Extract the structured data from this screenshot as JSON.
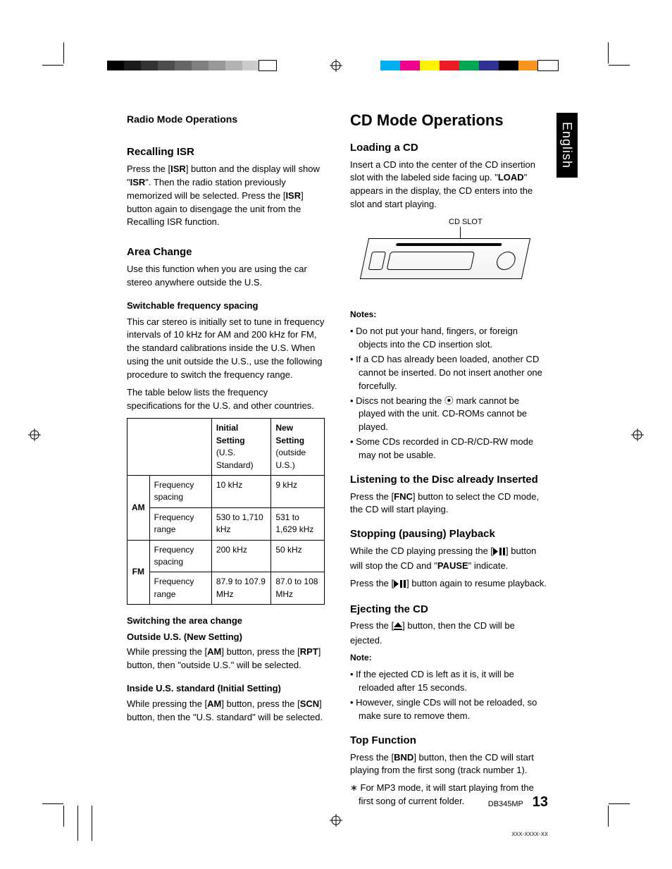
{
  "language_tab": "English",
  "page_footer": {
    "model": "DB345MP",
    "page_number": "13",
    "doc_code": "xxx-xxxx-xx"
  },
  "print_marks": {
    "mono_bar": [
      "#000000",
      "#1a1a1a",
      "#333333",
      "#4d4d4d",
      "#666666",
      "#808080",
      "#999999",
      "#b3b3b3",
      "#cccccc",
      "#ffffff"
    ],
    "color_bar": [
      "#00aeef",
      "#ec008c",
      "#fff200",
      "#ed1c24",
      "#00a651",
      "#2e3192",
      "#000000",
      "#f7941d",
      "#ffffff"
    ]
  },
  "left": {
    "minor_heading": "Radio Mode Operations",
    "recalling_isr": {
      "heading": "Recalling ISR",
      "body_parts": [
        "Press the [",
        "ISR",
        "] button and the display will show \"",
        "ISR",
        "\". Then the radio station previously memorized will be selected. Press the [",
        "ISR",
        "] button again to disengage the unit from the Recalling ISR function."
      ]
    },
    "area_change": {
      "heading": "Area Change",
      "intro": "Use this function when you are using the car stereo anywhere outside the U.S.",
      "switchable_heading": "Switchable frequency spacing",
      "switchable_body1": "This car stereo is initially set to tune in frequency intervals of 10 kHz for AM and 200 kHz for FM, the standard calibrations inside the U.S. When using the unit outside the U.S., use the following procedure to switch the frequency range.",
      "switchable_body2": "The table below lists the frequency specifications for the U.S. and other countries."
    },
    "freq_table": {
      "col_headers": [
        {
          "line1": "Initial Setting",
          "line2": "(U.S. Standard)"
        },
        {
          "line1": "New Setting",
          "line2": "(outside U.S.)"
        }
      ],
      "bands": [
        {
          "band": "AM",
          "rows": [
            {
              "label": "Frequency spacing",
              "initial": "10 kHz",
              "new": "9 kHz"
            },
            {
              "label": "Frequency range",
              "initial": "530 to 1,710 kHz",
              "new": "531 to 1,629 kHz"
            }
          ]
        },
        {
          "band": "FM",
          "rows": [
            {
              "label": "Frequency spacing",
              "initial": "200 kHz",
              "new": "50 kHz"
            },
            {
              "label": "Frequency range",
              "initial": "87.9 to 107.9 MHz",
              "new": "87.0 to 108 MHz"
            }
          ]
        }
      ]
    },
    "switching": {
      "heading": "Switching the area change",
      "outside_heading": "Outside U.S. (New Setting)",
      "outside_body_parts": [
        "While pressing the [",
        "AM",
        "] button, press the [",
        "RPT",
        "] button, then \"outside U.S.\" will be selected."
      ],
      "inside_heading": "Inside U.S. standard (Initial Setting)",
      "inside_body_parts": [
        "While pressing the [",
        "AM",
        "] button, press the [",
        "SCN",
        "] button, then the \"U.S. standard\" will be selected."
      ]
    }
  },
  "right": {
    "major_heading": "CD Mode Operations",
    "loading": {
      "heading": "Loading a CD",
      "body_parts": [
        "Insert a CD into the center of the CD insertion slot with the labeled side facing up. \"",
        "LOAD",
        "\" appears in the display, the CD enters into the slot and start playing."
      ],
      "diagram_label": "CD SLOT"
    },
    "notes": {
      "label": "Notes:",
      "items": [
        "Do not put your hand, fingers, or foreign objects into the CD insertion slot.",
        "If a CD has already been loaded, another CD cannot be inserted. Do not insert another one forcefully.",
        "Discs not bearing the ⦿ mark cannot be played with the unit. CD-ROMs cannot be played.",
        "Some CDs recorded in CD-R/CD-RW mode may not be usable."
      ]
    },
    "listening": {
      "heading": "Listening to the Disc already Inserted",
      "body_parts": [
        "Press the [",
        "FNC",
        "] button to select the CD mode, the CD will start playing."
      ]
    },
    "stopping": {
      "heading": "Stopping (pausing) Playback",
      "body1_pre": "While the CD playing pressing the [",
      "body1_post": "] button will stop the CD and \"",
      "body1_bold": "PAUSE",
      "body1_end": "\" indicate.",
      "body2_pre": "Press the [",
      "body2_post": "] button again to resume playback."
    },
    "ejecting": {
      "heading": "Ejecting the CD",
      "body_pre": "Press the [",
      "body_post": "] button, then the CD will be ejected.",
      "note_label": "Note:",
      "notes": [
        "If the ejected CD is left as it is, it will be reloaded after 15 seconds.",
        "However, single CDs will not be reloaded, so make sure to remove them."
      ]
    },
    "top_fn": {
      "heading": "Top Function",
      "body_parts": [
        "Press the [",
        "BND",
        "] button, then the CD will start playing from the first song (track number 1)."
      ],
      "star": "For MP3 mode, it will start playing from the first song of current folder."
    }
  }
}
